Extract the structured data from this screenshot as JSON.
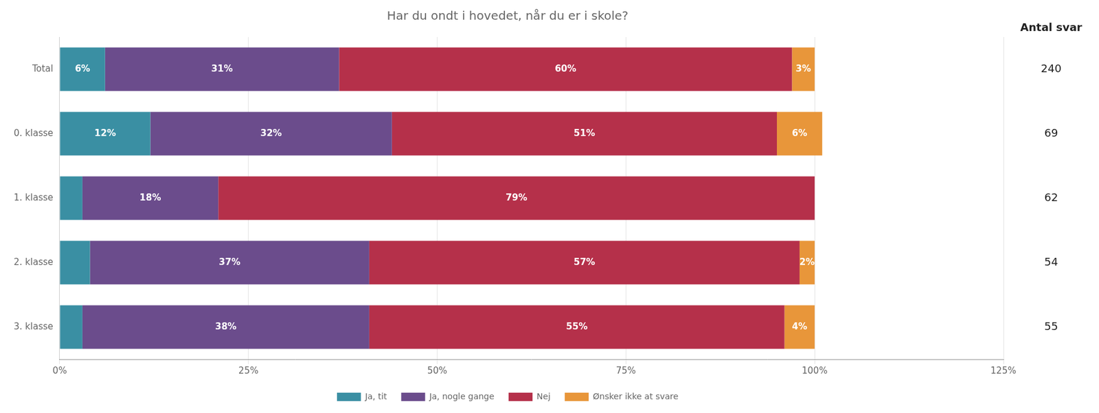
{
  "chart_data": {
    "type": "bar",
    "orientation": "horizontal",
    "stacked": true,
    "title": "Har du ondt i hovedet, når du er i skole?",
    "categories": [
      "Total",
      "0. klasse",
      "1. klasse",
      "2. klasse",
      "3. klasse"
    ],
    "series": [
      {
        "name": "Ja, tit",
        "color": "#3a8fa3",
        "values": [
          6,
          12,
          3,
          4,
          3
        ],
        "value_labels": [
          "6%",
          "12%",
          null,
          null,
          null
        ]
      },
      {
        "name": "Ja, nogle gange",
        "color": "#6b4c8c",
        "values": [
          31,
          32,
          18,
          37,
          38
        ],
        "value_labels": [
          "31%",
          "32%",
          "18%",
          "37%",
          "38%"
        ]
      },
      {
        "name": "Nej",
        "color": "#b5304a",
        "values": [
          60,
          51,
          79,
          57,
          55
        ],
        "value_labels": [
          "60%",
          "51%",
          "79%",
          "57%",
          "55%"
        ]
      },
      {
        "name": "Ønsker ikke at svare",
        "color": "#e8963a",
        "values": [
          3,
          6,
          0,
          2,
          4
        ],
        "value_labels": [
          "3%",
          "6%",
          null,
          "2%",
          "4%"
        ]
      }
    ],
    "xlim": [
      0,
      125
    ],
    "xticks": [
      {
        "value": 0,
        "label": "0%"
      },
      {
        "value": 25,
        "label": "25%"
      },
      {
        "value": 50,
        "label": "50%"
      },
      {
        "value": 75,
        "label": "75%"
      },
      {
        "value": 100,
        "label": "100%"
      },
      {
        "value": 125,
        "label": "125%"
      }
    ],
    "grid": true,
    "legend": "bottom",
    "data_labels": true,
    "counts_label": "Antal svar",
    "counts": [
      240,
      69,
      62,
      54,
      55
    ]
  }
}
